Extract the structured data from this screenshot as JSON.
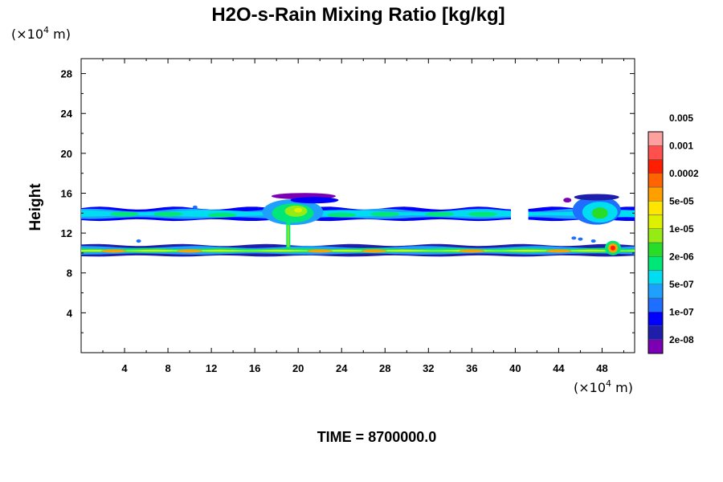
{
  "chart_data": {
    "type": "heatmap",
    "title": "H2O-s-Rain Mixing Ratio [kg/kg]",
    "ylabel": "Height",
    "y_unit_prefix": "(×10",
    "y_unit_exp": "4",
    "y_unit_suffix": " m)",
    "x_unit_prefix": "(×10",
    "x_unit_exp": "4",
    "x_unit_suffix": " m)",
    "x_ticks": [
      "4",
      "8",
      "12",
      "16",
      "20",
      "24",
      "28",
      "32",
      "36",
      "40",
      "44",
      "48"
    ],
    "y_ticks": [
      "4",
      "8",
      "12",
      "16",
      "20",
      "24",
      "28"
    ],
    "xlim": [
      0,
      51
    ],
    "ylim": [
      0,
      29.5
    ],
    "time_label": "TIME = 8700000.0",
    "colorbar": {
      "colors": [
        "#7b00b4",
        "#1e1eaa",
        "#0000ff",
        "#1e6eff",
        "#1ea0ff",
        "#00dcf0",
        "#00e678",
        "#28dc28",
        "#96eb14",
        "#dcf000",
        "#ffe600",
        "#ffa000",
        "#ff6400",
        "#ff1e00",
        "#ff5050",
        "#ffa0a0"
      ],
      "labels": [
        "2e-08",
        "1e-07",
        "5e-07",
        "2e-06",
        "1e-05",
        "5e-05",
        "0.0002",
        "0.001",
        "0.005"
      ]
    },
    "bands": [
      {
        "name": "upper-layer",
        "x": [
          0,
          51
        ],
        "y": [
          13.5,
          14.4
        ],
        "level": "5e-07"
      },
      {
        "name": "lower-layer",
        "x": [
          0,
          51
        ],
        "y": [
          9.8,
          10.7
        ],
        "level": "2e-06"
      },
      {
        "name": "convective-core",
        "x": [
          16,
          22
        ],
        "y": [
          12,
          16.2
        ],
        "level": "1e-05"
      },
      {
        "name": "right-cell",
        "x": [
          45,
          50
        ],
        "y": [
          12.8,
          15.8
        ],
        "level": "5e-06"
      },
      {
        "name": "hotspot",
        "x": [
          48,
          50
        ],
        "y": [
          9.8,
          11.4
        ],
        "level": "0.001"
      }
    ]
  }
}
